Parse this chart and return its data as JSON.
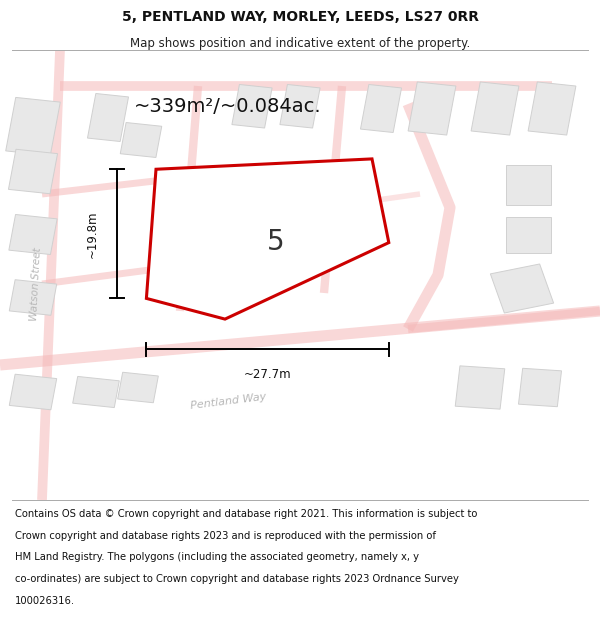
{
  "title": "5, PENTLAND WAY, MORLEY, LEEDS, LS27 0RR",
  "subtitle": "Map shows position and indicative extent of the property.",
  "area_label": "~339m²/~0.084ac.",
  "number_label": "5",
  "width_label": "~27.7m",
  "height_label": "~19.8m",
  "footer_lines": [
    "Contains OS data © Crown copyright and database right 2021. This information is subject to",
    "Crown copyright and database rights 2023 and is reproduced with the permission of",
    "HM Land Registry. The polygons (including the associated geometry, namely x, y",
    "co-ordinates) are subject to Crown copyright and database rights 2023 Ordnance Survey",
    "100026316."
  ],
  "map_bg": "#ffffff",
  "road_color": "#f5b8b8",
  "building_color": "#e8e8e8",
  "building_edge": "#d0d0d0",
  "plot_fill": "#ffffff",
  "plot_edge": "#cc0000",
  "plot_lw": 2.2,
  "title_fontsize": 10,
  "subtitle_fontsize": 8.5,
  "area_fontsize": 14,
  "number_fontsize": 20,
  "footer_fontsize": 7.2,
  "road_label_fontsize": 7.5
}
